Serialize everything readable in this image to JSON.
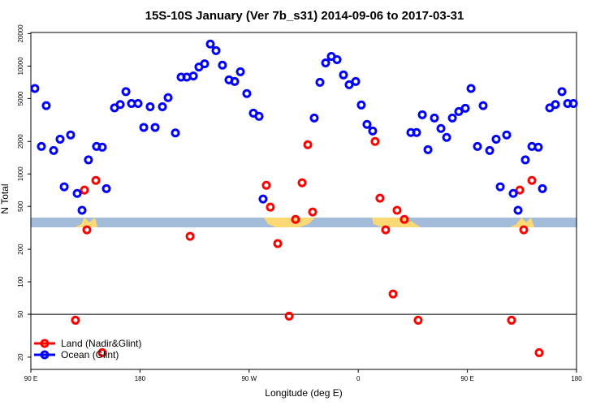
{
  "chart_data": {
    "type": "scatter",
    "title": "15S-10S January (Ver 7b_s31)   2014-09-06 to 2017-03-31",
    "x_label": "Longitude (deg E)",
    "y_label": "N Total",
    "log_y": true,
    "legend": "lower left",
    "hline": 50,
    "xlim": [
      90,
      540
    ],
    "ylim": [
      15.4,
      20500
    ],
    "xticks": [
      {
        "value": 90,
        "label": "90 E"
      },
      180,
      {
        "value": 270,
        "label": "90 W"
      },
      {
        "value": 360,
        "label": "0"
      },
      {
        "value": 450,
        "label": "90 E"
      },
      180
    ],
    "yticks": [
      20,
      50,
      100,
      200,
      500,
      1000,
      2000,
      5000,
      10000,
      20000
    ],
    "series": [
      {
        "name": "Land (Nadir&Glint)",
        "color": "#ff0000",
        "x": [
          126.8,
          134.2,
          136.2,
          143.6,
          148.9,
          221.3,
          284.2,
          287.5,
          293.6,
          303.0,
          308.3,
          313.7,
          318.4,
          322.4,
          373.9,
          377.9,
          382.6,
          388.7,
          392.0,
          398.0,
          409.4,
          486.4,
          493.2,
          496.5,
          503.2,
          509.2
        ],
        "values": [
          44,
          708,
          303,
          871,
          22,
          264,
          785,
          492,
          226,
          48,
          379,
          828,
          1866,
          444,
          2000,
          596,
          303,
          77,
          460,
          379,
          44,
          44,
          708,
          303,
          871,
          22
        ]
      },
      {
        "name": "Ocean (Glint)",
        "color": "#0000ff",
        "x": [
          93.3,
          98.7,
          102.7,
          108.8,
          114.1,
          117.5,
          122.8,
          128.2,
          132.2,
          137.5,
          144.2,
          148.9,
          152.3,
          159.0,
          163.7,
          168.4,
          173.0,
          178.4,
          183.1,
          188.4,
          192.5,
          198.5,
          203.2,
          209.2,
          213.9,
          218.6,
          224.0,
          228.6,
          233.3,
          238.0,
          242.7,
          248.0,
          253.4,
          258.1,
          262.8,
          268.1,
          273.5,
          278.2,
          281.5,
          323.7,
          328.4,
          333.1,
          337.8,
          342.5,
          347.8,
          352.5,
          357.9,
          362.5,
          367.2,
          371.9,
          403.4,
          408.1,
          412.8,
          417.5,
          422.8,
          428.2,
          432.9,
          437.6,
          442.9,
          448.3,
          453.0,
          458.3,
          463.0,
          468.4,
          473.7,
          477.1,
          482.4,
          487.8,
          491.8,
          497.8,
          503.2,
          508.5,
          511.9,
          517.9,
          522.6,
          528.0,
          532.7,
          537.4
        ],
        "values": [
          6200,
          1800,
          4300,
          1650,
          2100,
          760,
          2300,
          660,
          460,
          1350,
          1800,
          1770,
          730,
          4100,
          4400,
          5800,
          4500,
          4500,
          2700,
          4200,
          2700,
          4200,
          5100,
          2400,
          7900,
          7900,
          8100,
          9800,
          10500,
          16000,
          13900,
          10200,
          7450,
          7200,
          8870,
          5560,
          3660,
          3420,
          585,
          3300,
          7080,
          10700,
          12300,
          11480,
          8280,
          6720,
          7200,
          4360,
          2880,
          2500,
          2420,
          2420,
          3540,
          1680,
          3300,
          2640,
          2180,
          3300,
          3790,
          4060,
          6200,
          1800,
          4300,
          1650,
          2100,
          760,
          2300,
          660,
          460,
          1350,
          1800,
          1770,
          730,
          4100,
          4400,
          5800,
          4500,
          4500
        ]
      }
    ]
  }
}
